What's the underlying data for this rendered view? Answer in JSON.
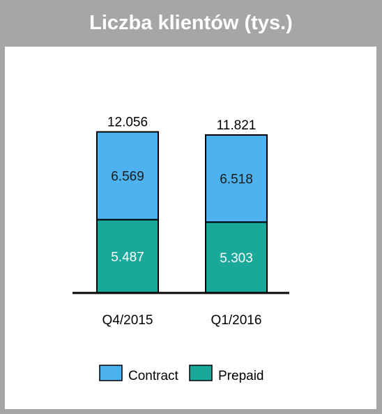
{
  "header": {
    "title": "Liczba klientów (tys.)"
  },
  "colors": {
    "contract": "#4db3f0",
    "prepaid": "#1aa89a",
    "header_bg": "#a6a6a6",
    "total_label": "#000000",
    "contract_label": "#1a1a1a",
    "prepaid_label": "#ffffff"
  },
  "chart_data": {
    "type": "bar",
    "stacked": true,
    "categories": [
      "Q4/2015",
      "Q1/2016"
    ],
    "series": [
      {
        "name": "Prepaid",
        "values": [
          5.487,
          5.303
        ],
        "labels": [
          "5.487",
          "5.303"
        ]
      },
      {
        "name": "Contract",
        "values": [
          6.569,
          6.518
        ],
        "labels": [
          "6.569",
          "6.518"
        ]
      }
    ],
    "totals": [
      12.056,
      11.821
    ],
    "total_labels": [
      "12.056",
      "11.821"
    ],
    "title": "Liczba klientów (tys.)",
    "legend_position": "bottom",
    "grid": false
  },
  "legend": {
    "items": [
      {
        "label": "Contract",
        "color_key": "contract"
      },
      {
        "label": "Prepaid",
        "color_key": "prepaid"
      }
    ]
  }
}
